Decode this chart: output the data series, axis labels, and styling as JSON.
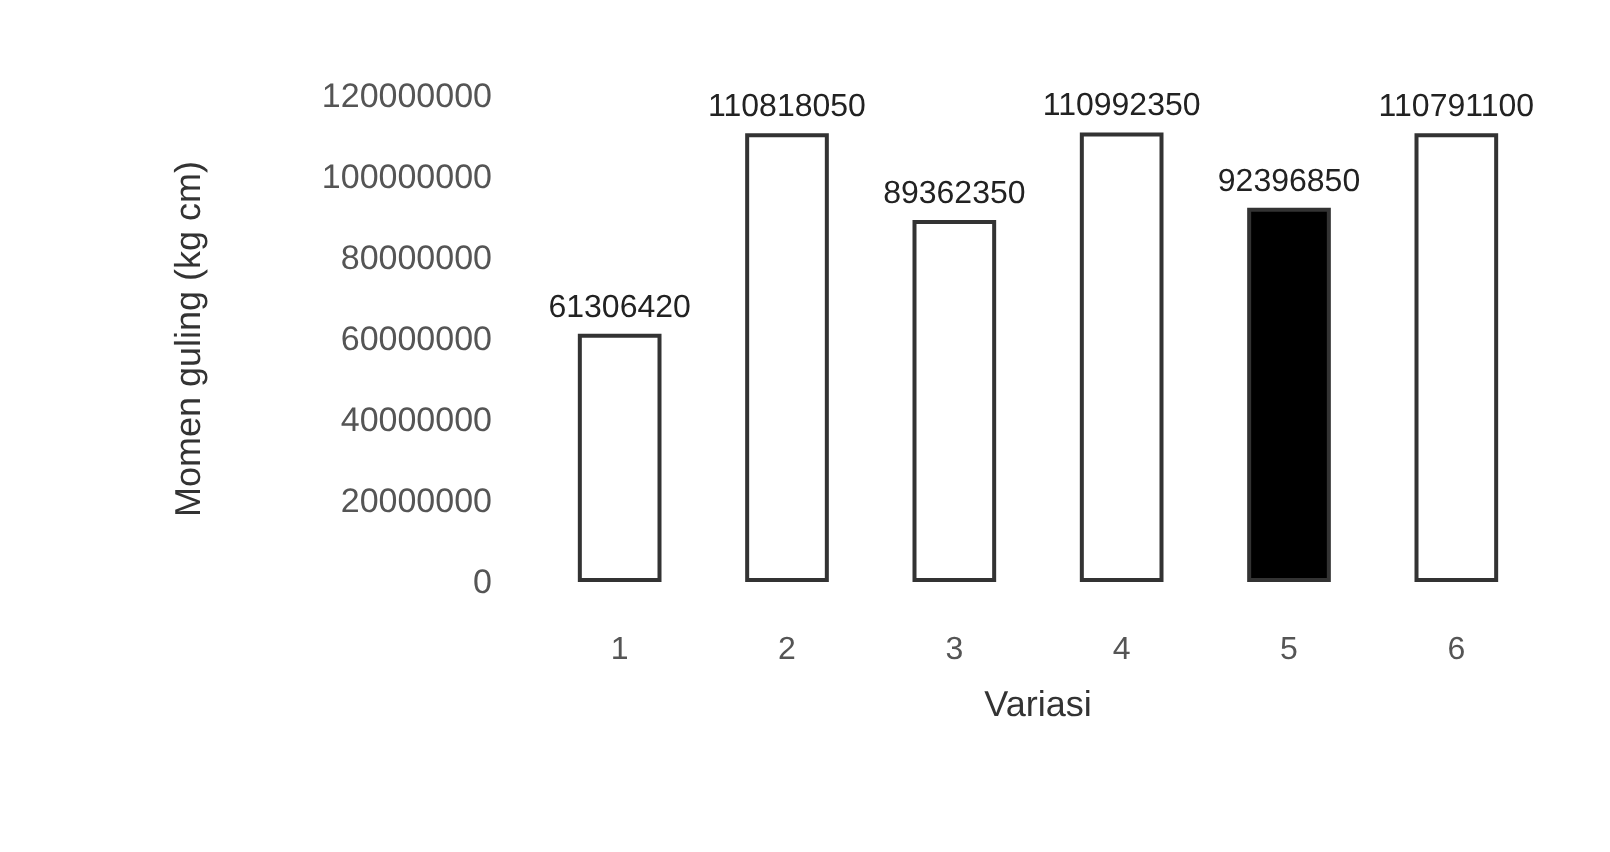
{
  "chart_data": {
    "type": "bar",
    "xlabel": "Variasi",
    "ylabel": "Momen guling (kg cm)",
    "categories": [
      "1",
      "2",
      "3",
      "4",
      "5",
      "6"
    ],
    "values": [
      61306420,
      110818050,
      89362350,
      110992350,
      92396850,
      110791100
    ],
    "colors": [
      "#ffffff",
      "#ffffff",
      "#ffffff",
      "#ffffff",
      "#000000",
      "#ffffff"
    ],
    "ylim": [
      0,
      120000000
    ],
    "yticks": [
      0,
      20000000,
      40000000,
      60000000,
      80000000,
      100000000,
      120000000
    ],
    "data_labels": true
  }
}
